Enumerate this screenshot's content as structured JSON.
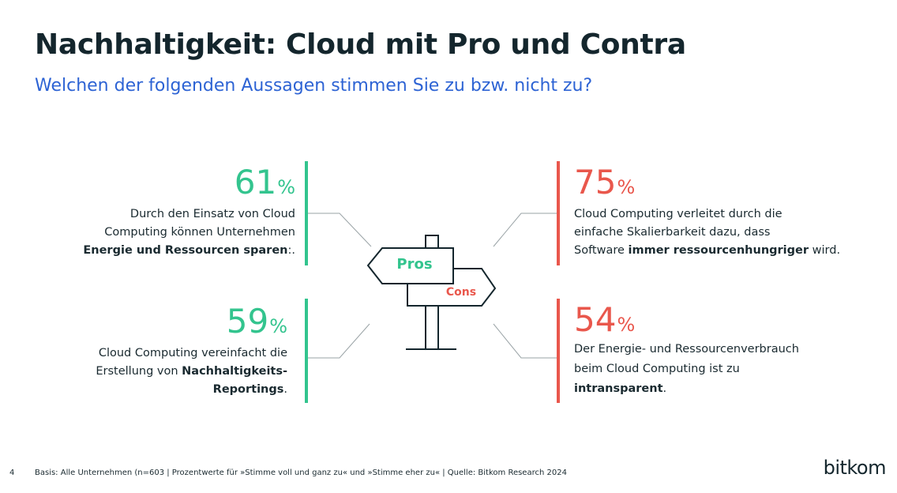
{
  "title": "Nachhaltigkeit: Cloud mit Pro und Contra",
  "subtitle": "Welchen der folgenden Aussagen stimmen Sie zu bzw. nicht zu?",
  "colors": {
    "pro": "#33c48e",
    "con": "#e9574c",
    "title": "#14262d",
    "subtitle": "#2d63d4"
  },
  "signpost": {
    "pros_label": "Pros",
    "cons_label": "Cons",
    "icon": "signpost-icon"
  },
  "pros": [
    {
      "value": "61",
      "unit": "%",
      "lines": [
        {
          "text": "Durch den Einsatz von Cloud"
        },
        {
          "text": "Computing können Unternehmen"
        },
        {
          "bold": "Energie und Ressourcen sparen",
          "text": ":."
        }
      ]
    },
    {
      "value": "59",
      "unit": "%",
      "lines": [
        {
          "text": "Cloud Computing vereinfacht die"
        },
        {
          "text": "Erstellung von ",
          "bold": "Nachhaltigkeits-"
        },
        {
          "bold": "Reportings",
          "text": "."
        }
      ]
    }
  ],
  "cons": [
    {
      "value": "75",
      "unit": "%",
      "lines": [
        {
          "text": "Cloud Computing verleitet durch die"
        },
        {
          "text": "einfache Skalierbarkeit dazu, dass"
        },
        {
          "pre": "Software ",
          "bold": "immer ressourcenhungriger",
          "text": " wird."
        }
      ]
    },
    {
      "value": "54",
      "unit": "%",
      "lines": [
        {
          "text": "Der Energie- und Ressourcenverbrauch"
        },
        {
          "text": "beim Cloud Computing ist zu"
        },
        {
          "bold": "intransparent",
          "text": "."
        }
      ]
    }
  ],
  "footer": {
    "page": "4",
    "note": "Basis: Alle Unternehmen (n=603 | Prozentwerte für »Stimme voll und ganz zu« und »Stimme eher zu« | Quelle: Bitkom Research 2024",
    "logo": "bitkom"
  }
}
